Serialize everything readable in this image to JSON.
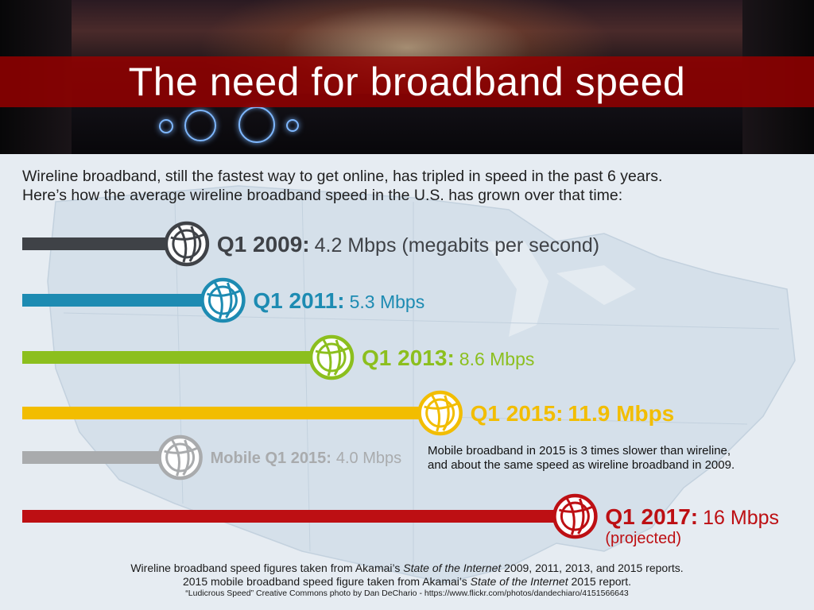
{
  "header": {
    "title": "The need for broadband speed"
  },
  "intro": {
    "line1": "Wireline broadband, still the fastest way to get online, has tripled in speed in the past 6 years.",
    "line2": "Here’s how the average wireline broadband speed in the U.S. has grown over that time:"
  },
  "chart_data": {
    "type": "bar",
    "orientation": "horizontal",
    "unit": "Mbps",
    "bars": [
      {
        "label": "Q1 2009:",
        "value": 4.2,
        "value_text": "4.2 Mbps (megabits per second)",
        "color": "#3f4247",
        "icon": "globe-icon"
      },
      {
        "label": "Q1 2011:",
        "value": 5.3,
        "value_text": "5.3 Mbps",
        "color": "#1d8bb2",
        "icon": "globe-icon"
      },
      {
        "label": "Q1 2013:",
        "value": 8.6,
        "value_text": "8.6 Mbps",
        "color": "#8cbf1e",
        "icon": "globe-icon"
      },
      {
        "label": "Q1 2015:",
        "value": 11.9,
        "value_text": "11.9 Mbps",
        "color": "#f2bd00",
        "icon": "globe-icon"
      },
      {
        "label": "Mobile Q1 2015:",
        "value": 4.0,
        "value_text": "4.0 Mbps",
        "color": "#a9abad",
        "icon": "globe-icon"
      },
      {
        "label": "Q1 2017:",
        "value": 16,
        "value_text": "16 Mbps",
        "sub_text": "(projected)",
        "color": "#bd0f13",
        "icon": "globe-icon"
      }
    ],
    "grid": false,
    "legend": "none"
  },
  "note": {
    "line1": "Mobile broadband in 2015 is 3 times slower than wireline,",
    "line2": "and about the same speed as wireline broadband in 2009."
  },
  "sources": {
    "line1_pre": "Wireline broadband speed figures taken from Akamai’s ",
    "line1_italic": "State of the Internet",
    "line1_post": " 2009, 2011, 2013, and 2015 reports.",
    "line2_pre": "2015 mobile broadband speed figure taken from Akamai’s ",
    "line2_italic": "State of the Internet",
    "line2_post": " 2015 report.",
    "line3": "“Ludicrous Speed” Creative Commons photo by Dan DeChario - https://www.flickr.com/photos/dandechiaro/4151566643"
  }
}
